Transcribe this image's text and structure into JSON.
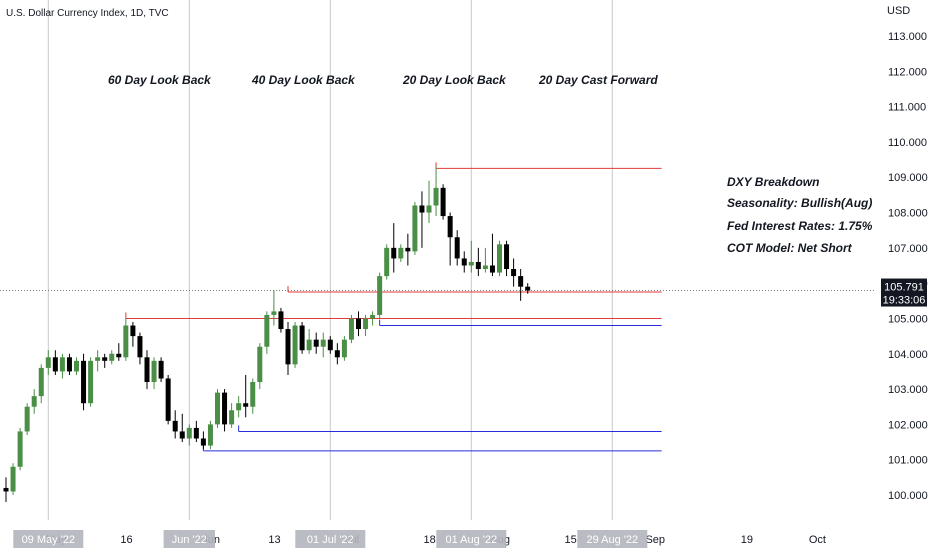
{
  "chart_title": "U.S. Dollar Currency Index, 1D, TVC",
  "currency_label": "USD",
  "section_labels": [
    "60 Day Look Back",
    "40 Day Look Back",
    "20 Day Look Back",
    "20 Day Cast Forward"
  ],
  "notes": {
    "breakdown": "DXY Breakdown",
    "seasonality": "Seasonality: Bullish(Aug)",
    "fed_rates": "Fed Interest Rates: 1.75%",
    "cot_model": "COT Model: Net Short"
  },
  "price_tag": {
    "price": "105.791",
    "time": "19:33:06",
    "value": 105.791
  },
  "colors": {
    "bull": "#4a8f45",
    "bear": "#000000",
    "resistance": "#e03a3a",
    "support": "#2b2bdc",
    "gridline": "#c8c8c8",
    "axis_tag": "#b2b5be",
    "price_tag": "#131722"
  },
  "chart_data": {
    "type": "candlestick",
    "title": "U.S. Dollar Currency Index, 1D, TVC",
    "ylabel": "USD",
    "ylim": [
      99.5,
      114.0
    ],
    "yticks": [
      "100.000",
      "101.000",
      "102.000",
      "103.000",
      "104.000",
      "105.000",
      "106.000",
      "107.000",
      "108.000",
      "109.000",
      "110.000",
      "111.000",
      "112.000",
      "113.000"
    ],
    "ytick_values": [
      100,
      101,
      102,
      103,
      104,
      105,
      106,
      107,
      108,
      109,
      110,
      111,
      112,
      113
    ],
    "xticks": [
      {
        "label": "May",
        "index": 0
      },
      {
        "label": "16",
        "index": 10
      },
      {
        "label": "Jun",
        "index": 22
      },
      {
        "label": "13",
        "index": 31
      },
      {
        "label": "Jul",
        "index": 42
      },
      {
        "label": "18",
        "index": 53
      },
      {
        "label": "Aug",
        "index": 63
      },
      {
        "label": "15",
        "index": 73
      },
      {
        "label": "Sep",
        "index": 85
      },
      {
        "label": "19",
        "index": 98
      },
      {
        "label": "Oct",
        "index": 108
      }
    ],
    "x_highlight_tags": [
      {
        "label": "09 May '22",
        "index": 6
      },
      {
        "label": "Jun '22",
        "index": 26
      },
      {
        "label": "01 Jul '22",
        "index": 46
      },
      {
        "label": "01 Aug '22",
        "index": 66
      },
      {
        "label": "29 Aug '22",
        "index": 86
      }
    ],
    "candles": [
      {
        "o": 100.2,
        "h": 100.5,
        "l": 99.8,
        "c": 100.1
      },
      {
        "o": 100.1,
        "h": 100.9,
        "l": 100.0,
        "c": 100.8
      },
      {
        "o": 100.8,
        "h": 101.9,
        "l": 100.7,
        "c": 101.8
      },
      {
        "o": 101.8,
        "h": 102.6,
        "l": 101.7,
        "c": 102.5
      },
      {
        "o": 102.5,
        "h": 103.0,
        "l": 102.3,
        "c": 102.8
      },
      {
        "o": 102.8,
        "h": 103.7,
        "l": 102.6,
        "c": 103.6
      },
      {
        "o": 103.6,
        "h": 104.1,
        "l": 103.4,
        "c": 103.9
      },
      {
        "o": 103.9,
        "h": 104.1,
        "l": 103.4,
        "c": 103.5
      },
      {
        "o": 103.5,
        "h": 104.0,
        "l": 103.3,
        "c": 103.9
      },
      {
        "o": 103.9,
        "h": 104.0,
        "l": 103.4,
        "c": 103.5
      },
      {
        "o": 103.5,
        "h": 103.9,
        "l": 103.4,
        "c": 103.8
      },
      {
        "o": 103.8,
        "h": 104.0,
        "l": 102.4,
        "c": 102.6
      },
      {
        "o": 102.6,
        "h": 103.9,
        "l": 102.5,
        "c": 103.8
      },
      {
        "o": 103.8,
        "h": 104.1,
        "l": 103.5,
        "c": 103.9
      },
      {
        "o": 103.9,
        "h": 104.0,
        "l": 103.6,
        "c": 103.8
      },
      {
        "o": 103.8,
        "h": 104.1,
        "l": 103.7,
        "c": 104.0
      },
      {
        "o": 104.0,
        "h": 104.3,
        "l": 103.8,
        "c": 103.9
      },
      {
        "o": 103.9,
        "h": 105.0,
        "l": 103.8,
        "c": 104.8
      },
      {
        "o": 104.8,
        "h": 104.9,
        "l": 104.2,
        "c": 104.5
      },
      {
        "o": 104.5,
        "h": 104.6,
        "l": 103.7,
        "c": 103.9
      },
      {
        "o": 103.9,
        "h": 104.1,
        "l": 103.0,
        "c": 103.2
      },
      {
        "o": 103.2,
        "h": 103.9,
        "l": 103.0,
        "c": 103.8
      },
      {
        "o": 103.8,
        "h": 103.9,
        "l": 103.2,
        "c": 103.3
      },
      {
        "o": 103.3,
        "h": 103.4,
        "l": 102.0,
        "c": 102.1
      },
      {
        "o": 102.1,
        "h": 102.4,
        "l": 101.6,
        "c": 101.8
      },
      {
        "o": 101.8,
        "h": 102.3,
        "l": 101.5,
        "c": 101.6
      },
      {
        "o": 101.6,
        "h": 102.0,
        "l": 101.4,
        "c": 101.9
      },
      {
        "o": 101.9,
        "h": 102.1,
        "l": 101.5,
        "c": 101.6
      },
      {
        "o": 101.6,
        "h": 101.8,
        "l": 101.3,
        "c": 101.4
      },
      {
        "o": 101.4,
        "h": 102.1,
        "l": 101.3,
        "c": 102.0
      },
      {
        "o": 102.0,
        "h": 103.0,
        "l": 101.9,
        "c": 102.9
      },
      {
        "o": 102.9,
        "h": 103.0,
        "l": 101.8,
        "c": 102.0
      },
      {
        "o": 102.0,
        "h": 102.6,
        "l": 101.9,
        "c": 102.4
      },
      {
        "o": 102.4,
        "h": 102.8,
        "l": 102.2,
        "c": 102.6
      },
      {
        "o": 102.6,
        "h": 103.4,
        "l": 102.2,
        "c": 102.5
      },
      {
        "o": 102.5,
        "h": 103.3,
        "l": 102.3,
        "c": 103.2
      },
      {
        "o": 103.2,
        "h": 104.3,
        "l": 103.0,
        "c": 104.2
      },
      {
        "o": 104.2,
        "h": 105.2,
        "l": 104.0,
        "c": 105.1
      },
      {
        "o": 105.1,
        "h": 105.8,
        "l": 104.8,
        "c": 105.2
      },
      {
        "o": 105.2,
        "h": 105.3,
        "l": 104.6,
        "c": 104.7
      },
      {
        "o": 104.7,
        "h": 104.9,
        "l": 103.4,
        "c": 103.7
      },
      {
        "o": 103.7,
        "h": 104.9,
        "l": 103.6,
        "c": 104.8
      },
      {
        "o": 104.8,
        "h": 104.9,
        "l": 104.0,
        "c": 104.1
      },
      {
        "o": 104.1,
        "h": 104.7,
        "l": 104.0,
        "c": 104.4
      },
      {
        "o": 104.4,
        "h": 104.6,
        "l": 104.0,
        "c": 104.2
      },
      {
        "o": 104.2,
        "h": 104.6,
        "l": 103.9,
        "c": 104.4
      },
      {
        "o": 104.4,
        "h": 104.5,
        "l": 104.0,
        "c": 104.1
      },
      {
        "o": 104.1,
        "h": 104.3,
        "l": 103.7,
        "c": 103.9
      },
      {
        "o": 103.9,
        "h": 104.5,
        "l": 103.8,
        "c": 104.4
      },
      {
        "o": 104.4,
        "h": 105.1,
        "l": 104.3,
        "c": 105.0
      },
      {
        "o": 105.0,
        "h": 105.2,
        "l": 104.5,
        "c": 104.7
      },
      {
        "o": 104.7,
        "h": 105.1,
        "l": 104.5,
        "c": 105.0
      },
      {
        "o": 105.0,
        "h": 105.2,
        "l": 104.8,
        "c": 105.1
      },
      {
        "o": 105.1,
        "h": 106.3,
        "l": 105.0,
        "c": 106.2
      },
      {
        "o": 106.2,
        "h": 107.1,
        "l": 106.1,
        "c": 107.0
      },
      {
        "o": 107.0,
        "h": 107.7,
        "l": 106.3,
        "c": 106.7
      },
      {
        "o": 106.7,
        "h": 107.1,
        "l": 106.6,
        "c": 107.0
      },
      {
        "o": 107.0,
        "h": 107.4,
        "l": 106.5,
        "c": 106.9
      },
      {
        "o": 106.9,
        "h": 108.3,
        "l": 106.8,
        "c": 108.2
      },
      {
        "o": 108.2,
        "h": 108.6,
        "l": 107.0,
        "c": 108.0
      },
      {
        "o": 108.0,
        "h": 108.9,
        "l": 107.7,
        "c": 108.2
      },
      {
        "o": 108.2,
        "h": 109.3,
        "l": 107.9,
        "c": 108.7
      },
      {
        "o": 108.7,
        "h": 108.8,
        "l": 107.8,
        "c": 107.9
      },
      {
        "o": 107.9,
        "h": 108.0,
        "l": 106.5,
        "c": 107.3
      },
      {
        "o": 107.3,
        "h": 107.5,
        "l": 106.5,
        "c": 106.7
      },
      {
        "o": 106.7,
        "h": 106.9,
        "l": 106.3,
        "c": 106.5
      },
      {
        "o": 106.5,
        "h": 107.2,
        "l": 106.3,
        "c": 106.6
      },
      {
        "o": 106.6,
        "h": 107.0,
        "l": 106.2,
        "c": 106.4
      },
      {
        "o": 106.4,
        "h": 107.0,
        "l": 106.3,
        "c": 106.5
      },
      {
        "o": 106.5,
        "h": 107.4,
        "l": 106.2,
        "c": 106.3
      },
      {
        "o": 106.3,
        "h": 107.2,
        "l": 106.2,
        "c": 107.1
      },
      {
        "o": 107.1,
        "h": 107.2,
        "l": 106.2,
        "c": 106.4
      },
      {
        "o": 106.4,
        "h": 106.7,
        "l": 105.9,
        "c": 106.2
      },
      {
        "o": 106.2,
        "h": 106.4,
        "l": 105.5,
        "c": 105.9
      },
      {
        "o": 105.9,
        "h": 106.0,
        "l": 105.7,
        "c": 105.791
      }
    ],
    "vertical_markers": [
      {
        "label": "",
        "index": 6
      },
      {
        "label": "",
        "index": 26
      },
      {
        "label": "",
        "index": 46
      },
      {
        "label": "",
        "index": 66
      },
      {
        "label": "",
        "index": 86
      }
    ],
    "horizontal_levels": [
      {
        "kind": "resistance",
        "value": 109.25,
        "from_index": 61,
        "to_index": 93
      },
      {
        "kind": "resistance",
        "value": 105.75,
        "from_index": 40,
        "to_index": 93
      },
      {
        "kind": "resistance",
        "value": 105.0,
        "from_index": 17,
        "to_index": 93
      },
      {
        "kind": "support",
        "value": 104.8,
        "from_index": 53,
        "to_index": 93
      },
      {
        "kind": "support",
        "value": 101.8,
        "from_index": 33,
        "to_index": 93
      },
      {
        "kind": "support",
        "value": 101.25,
        "from_index": 28,
        "to_index": 93
      }
    ]
  }
}
